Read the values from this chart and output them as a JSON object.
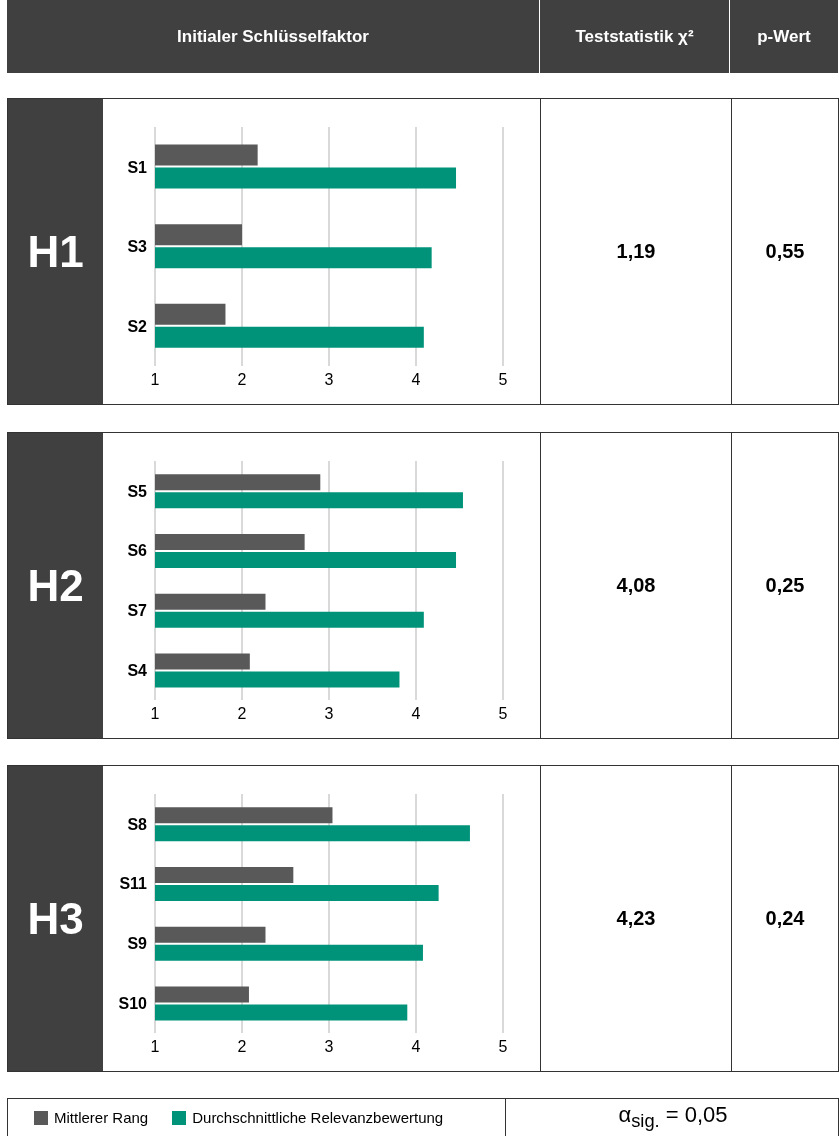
{
  "chart_data": [
    {
      "type": "other",
      "annotations": [
        "Initialer Schlüsselfaktor",
        "Teststatistik χ²",
        "p-Wert"
      ]
    },
    {
      "type": "bar",
      "orientation": "horizontal",
      "title": "H1",
      "categories": [
        "S1",
        "S3",
        "S2"
      ],
      "series": [
        {
          "color": "#595959",
          "values": [
            2.18,
            2.0,
            1.81
          ]
        },
        {
          "color": "#00937a",
          "values": [
            4.46,
            4.18,
            4.09
          ]
        }
      ],
      "xlim": [
        1,
        5
      ],
      "xticks": [
        1,
        2,
        3,
        4,
        5
      ],
      "grid": "x",
      "annotations": [
        "1,19",
        "0,55"
      ]
    },
    {
      "type": "bar",
      "orientation": "horizontal",
      "title": "H2",
      "categories": [
        "S5",
        "S6",
        "S7",
        "S4"
      ],
      "series": [
        {
          "color": "#595959",
          "values": [
            2.9,
            2.72,
            2.27,
            2.09
          ]
        },
        {
          "color": "#00937a",
          "values": [
            4.54,
            4.46,
            4.09,
            3.81
          ]
        }
      ],
      "xlim": [
        1,
        5
      ],
      "xticks": [
        1,
        2,
        3,
        4,
        5
      ],
      "grid": "x",
      "annotations": [
        "4,08",
        "0,25"
      ]
    },
    {
      "type": "bar",
      "orientation": "horizontal",
      "title": "H3",
      "categories": [
        "S8",
        "S11",
        "S9",
        "S10"
      ],
      "series": [
        {
          "name": "Mittlerer Rang",
          "color": "#595959",
          "values": [
            3.04,
            2.59,
            2.27,
            2.08
          ]
        },
        {
          "name": "Durchschnittliche Relevanzbewertung",
          "color": "#00937a",
          "values": [
            4.62,
            4.26,
            4.08,
            3.9
          ]
        }
      ],
      "xlim": [
        1,
        5
      ],
      "xticks": [
        1,
        2,
        3,
        4,
        5
      ],
      "grid": "x",
      "legend": "bottom",
      "annotations": [
        "4,23",
        "0,24"
      ]
    },
    {
      "type": "other",
      "annotations": [
        "α$_{sig.}$ = 0,05"
      ]
    }
  ]
}
